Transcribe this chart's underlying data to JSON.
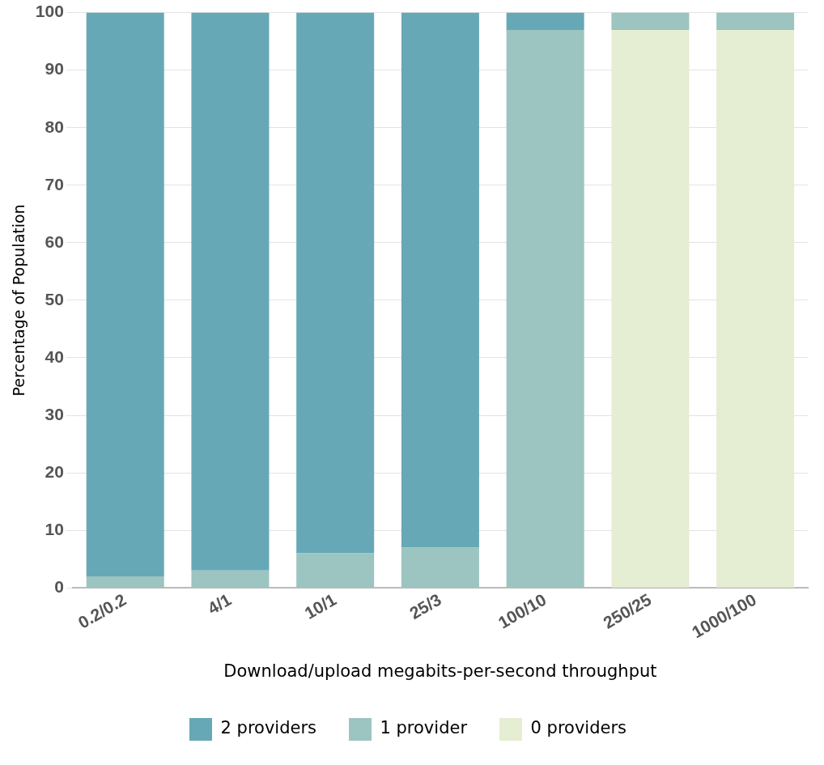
{
  "chart_data": {
    "type": "bar",
    "stacked": true,
    "xlabel": "Download/upload megabits-per-second throughput",
    "ylabel": "Percentage of Population",
    "categories": [
      "0.2/0.2",
      "4/1",
      "10/1",
      "25/3",
      "100/10",
      "250/25",
      "1000/100"
    ],
    "series": [
      {
        "name": "0 providers",
        "color": "#e5edd2",
        "values": [
          0,
          0,
          0,
          0,
          0,
          97,
          97
        ]
      },
      {
        "name": "1 provider",
        "color": "#9cc4c0",
        "values": [
          2,
          3,
          6,
          7,
          97,
          3,
          3
        ]
      },
      {
        "name": "2 providers",
        "color": "#67a8b7",
        "values": [
          98,
          97,
          94,
          93,
          3,
          0,
          0
        ]
      }
    ],
    "ylim": [
      0,
      100
    ],
    "yticks": [
      0,
      10,
      20,
      30,
      40,
      50,
      60,
      70,
      80,
      90,
      100
    ],
    "grid": "y",
    "legend": "bottom"
  }
}
